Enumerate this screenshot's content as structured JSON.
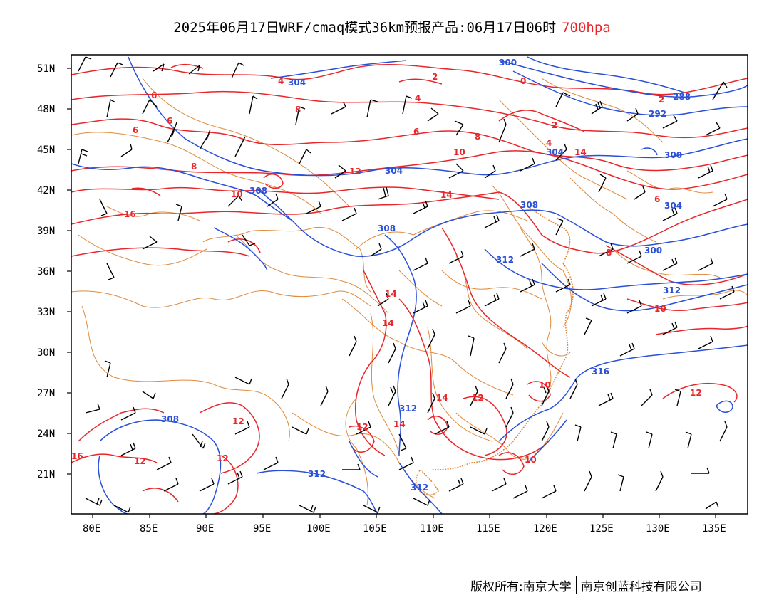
{
  "title": {
    "main": "2025年06月17日WRF/cmaq模式36km预报产品:06月17日06时",
    "level": "700hpa"
  },
  "axes": {
    "lat_labels": [
      "51N",
      "48N",
      "45N",
      "42N",
      "39N",
      "36N",
      "33N",
      "30N",
      "27N",
      "24N",
      "21N"
    ],
    "lon_labels": [
      "80E",
      "85E",
      "90E",
      "95E",
      "100E",
      "105E",
      "110E",
      "115E",
      "120E",
      "125E",
      "130E",
      "135E"
    ]
  },
  "contours": {
    "temperature_labels": [
      "0",
      "2",
      "4",
      "6",
      "8",
      "10",
      "12",
      "14",
      "16",
      "8",
      "6",
      "4",
      "2",
      "10",
      "12",
      "14",
      "6",
      "8",
      "12",
      "12",
      "12",
      "14",
      "12",
      "10",
      "10",
      "14",
      "16",
      "6",
      "2",
      "4",
      "8",
      "6",
      "10",
      "12",
      "14",
      "14"
    ],
    "height_labels": [
      "300",
      "304",
      "288",
      "292",
      "300",
      "304",
      "308",
      "308",
      "308",
      "312",
      "312",
      "312",
      "316",
      "312",
      "312",
      "308",
      "304",
      "304",
      "300"
    ]
  },
  "colors": {
    "temperature": "#e8262a",
    "height": "#2a4fd8",
    "boundary": "#e08a3c",
    "wind": "#000000"
  },
  "footer": {
    "left": "版权所有:南京大学",
    "right": "南京创蓝科技有限公司"
  }
}
